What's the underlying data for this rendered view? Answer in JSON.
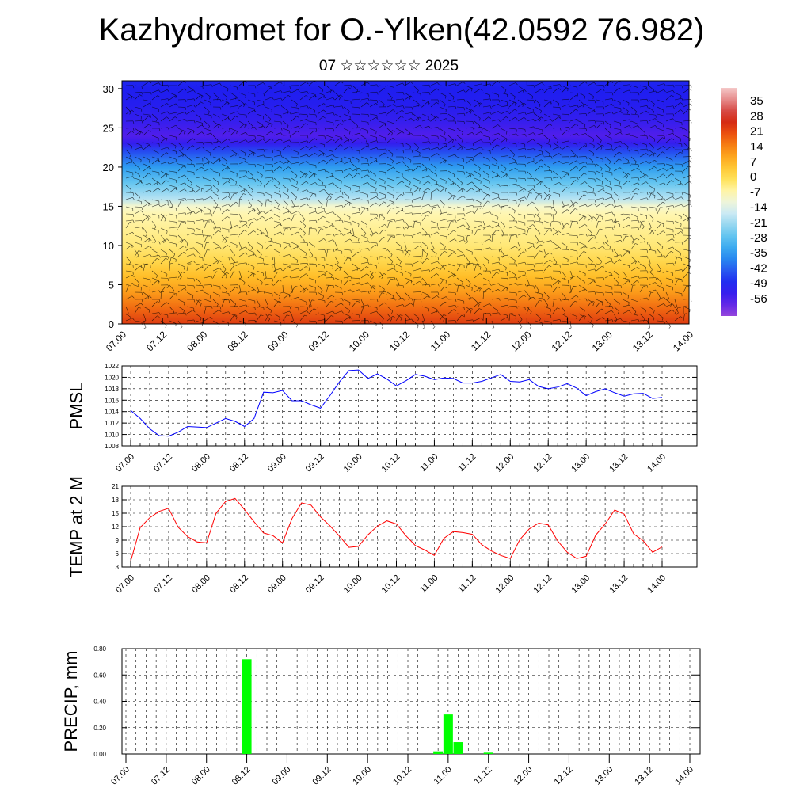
{
  "header": {
    "title": "Kazhydromet for O.-Ylken(42.0592 76.982)",
    "subtitle": "07 ☆☆☆☆☆☆ 2025"
  },
  "chart_data": [
    {
      "type": "heatmap",
      "id": "profile",
      "description": "Vertical temperature profile with wind barbs",
      "x_tick_labels": [
        "07.00",
        "07.12",
        "08.00",
        "08.12",
        "09.00",
        "09.12",
        "10.00",
        "10.12",
        "11.00",
        "11.12",
        "12.00",
        "12.12",
        "13.00",
        "13.12",
        "14.00"
      ],
      "ylim": [
        0,
        31
      ],
      "y_ticks": [
        0,
        5,
        10,
        15,
        20,
        25,
        30
      ],
      "colorbar": {
        "labels": [
          "35",
          "28",
          "21",
          "14",
          "7",
          "0",
          "-7",
          "-14",
          "-21",
          "-28",
          "-35",
          "-42",
          "-49",
          "-56"
        ],
        "range": [
          -63,
          42
        ]
      },
      "levels": [
        0,
        2,
        4,
        6,
        8,
        10,
        12,
        14,
        15,
        16,
        18,
        20,
        22,
        23,
        24,
        25,
        26,
        28,
        30,
        31
      ],
      "level_values": [
        24,
        18,
        12,
        7,
        2,
        -2,
        -4,
        -6,
        -9,
        -18,
        -26,
        -34,
        -44,
        -52,
        -56,
        -54,
        -52,
        -50,
        -49,
        -48
      ]
    },
    {
      "type": "line",
      "id": "pmsl",
      "ylabel": "PMSL",
      "ylim": [
        1008,
        1022
      ],
      "y_ticks": [
        1008,
        1010,
        1012,
        1014,
        1016,
        1018,
        1020,
        1022
      ],
      "x_tick_labels": [
        "07.00",
        "07.12",
        "08.00",
        "08.12",
        "09.00",
        "09.12",
        "10.00",
        "10.12",
        "11.00",
        "11.12",
        "12.00",
        "12.12",
        "13.00",
        "13.12",
        "14.00"
      ],
      "x": [
        0,
        3,
        6,
        9,
        12,
        15,
        18,
        24,
        30,
        33,
        36,
        39,
        42,
        45,
        48,
        51,
        54,
        57,
        60,
        63,
        66,
        69,
        72,
        75,
        78,
        81,
        84,
        87,
        90,
        93,
        96,
        99,
        102,
        105,
        108,
        111,
        114,
        117,
        120,
        123,
        126,
        129,
        132,
        135,
        138,
        141,
        144,
        147,
        150,
        153,
        156,
        159,
        162,
        165,
        168
      ],
      "values": [
        1014.2,
        1012.8,
        1011.0,
        1009.8,
        1009.7,
        1010.4,
        1011.4,
        1011.2,
        1012.8,
        1012.3,
        1011.4,
        1012.8,
        1017.4,
        1017.3,
        1017.7,
        1015.9,
        1015.9,
        1015.2,
        1014.6,
        1016.8,
        1019.2,
        1021.2,
        1021.3,
        1019.8,
        1020.6,
        1019.7,
        1018.5,
        1019.4,
        1020.5,
        1020.2,
        1019.6,
        1019.9,
        1019.8,
        1019.0,
        1019.0,
        1019.3,
        1019.9,
        1020.5,
        1019.3,
        1019.2,
        1019.6,
        1018.4,
        1018.0,
        1018.3,
        1018.9,
        1018.1,
        1016.8,
        1017.5,
        1018.0,
        1017.3,
        1016.7,
        1017.1,
        1017.2,
        1016.3,
        1016.5
      ]
    },
    {
      "type": "line",
      "id": "temp",
      "ylabel": "TEMP at 2 M",
      "ylim": [
        3,
        21
      ],
      "y_ticks": [
        3,
        6,
        9,
        12,
        15,
        18,
        21
      ],
      "x_tick_labels": [
        "07.00",
        "07.12",
        "08.00",
        "08.12",
        "09.00",
        "09.12",
        "10.00",
        "10.12",
        "11.00",
        "11.12",
        "12.00",
        "12.12",
        "13.00",
        "13.12",
        "14.00"
      ],
      "x": [
        0,
        3,
        6,
        9,
        12,
        15,
        18,
        21,
        24,
        27,
        30,
        33,
        36,
        39,
        42,
        45,
        48,
        51,
        54,
        57,
        60,
        63,
        66,
        69,
        72,
        75,
        78,
        81,
        84,
        87,
        90,
        93,
        96,
        99,
        102,
        105,
        108,
        111,
        114,
        117,
        120,
        123,
        126,
        129,
        132,
        135,
        138,
        141,
        144,
        147,
        150,
        153,
        156,
        159,
        162,
        165,
        168
      ],
      "values": [
        4.3,
        11.8,
        14.0,
        15.4,
        16.1,
        11.9,
        9.8,
        8.6,
        8.4,
        15.0,
        17.6,
        18.3,
        15.8,
        13.1,
        10.6,
        10.0,
        8.4,
        13.8,
        17.3,
        16.8,
        14.2,
        12.2,
        9.9,
        7.4,
        7.6,
        10.2,
        12.1,
        13.3,
        12.6,
        10.0,
        7.8,
        6.8,
        5.6,
        9.4,
        10.9,
        10.7,
        10.3,
        8.0,
        6.6,
        5.6,
        4.9,
        9.1,
        11.5,
        12.8,
        12.4,
        8.8,
        6.3,
        4.9,
        5.4,
        10.1,
        12.6,
        15.7,
        14.8,
        10.4,
        8.9,
        6.3,
        7.5
      ]
    },
    {
      "type": "bar",
      "id": "precip",
      "ylabel": "PRECIP, mm",
      "ylim": [
        0,
        0.8
      ],
      "y_tick_labels": [
        "0.00",
        "0.20",
        "0.40",
        "0.60",
        "0.80"
      ],
      "x_tick_labels": [
        "07.00",
        "07.12",
        "08.00",
        "08.12",
        "09.00",
        "09.12",
        "10.00",
        "10.12",
        "11.00",
        "11.12",
        "12.00",
        "12.12",
        "13.00",
        "13.12",
        "14.00"
      ],
      "x": [
        36,
        93,
        96,
        99,
        108
      ],
      "values": [
        0.72,
        0.02,
        0.3,
        0.09,
        0.01
      ]
    }
  ],
  "colors": {
    "pmsl_line": "#0000ff",
    "temp_line": "#ff0000",
    "precip_bar": "#00ff00"
  }
}
